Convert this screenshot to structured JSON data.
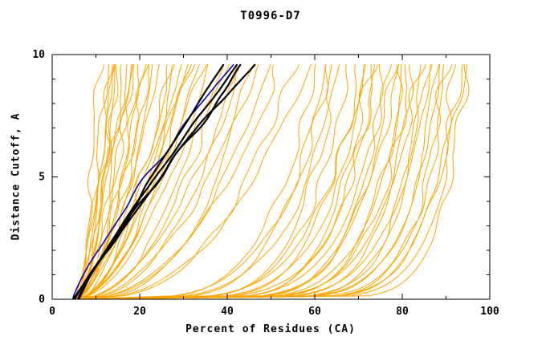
{
  "chart_data": {
    "type": "line",
    "title": "T0996-D7",
    "xlabel": "Percent of Residues (CA)",
    "ylabel": "Distance Cutoff, A",
    "xlim": [
      0,
      100
    ],
    "ylim": [
      0,
      10
    ],
    "xticks": [
      0,
      20,
      40,
      60,
      80,
      100
    ],
    "yticks": [
      0,
      5,
      10
    ],
    "x_minor_step": 10,
    "y_minor_step": 1,
    "curve_top": 9.6,
    "grid": false,
    "legend": "none",
    "series": [
      {
        "name": "model-curves",
        "color": "#FFA500",
        "width": 1,
        "noise": 1.6,
        "curves": [
          {
            "s": 5,
            "e": 11,
            "p": 0.55
          },
          {
            "s": 5.5,
            "e": 12,
            "p": 0.6
          },
          {
            "s": 6,
            "e": 13,
            "p": 0.5
          },
          {
            "s": 5,
            "e": 13,
            "p": 0.7
          },
          {
            "s": 6,
            "e": 14,
            "p": 0.6
          },
          {
            "s": 5,
            "e": 15,
            "p": 0.5
          },
          {
            "s": 6,
            "e": 15,
            "p": 0.75
          },
          {
            "s": 5,
            "e": 16,
            "p": 0.6
          },
          {
            "s": 6,
            "e": 17,
            "p": 0.55
          },
          {
            "s": 5,
            "e": 18,
            "p": 0.7
          },
          {
            "s": 6,
            "e": 18,
            "p": 0.5
          },
          {
            "s": 5,
            "e": 19,
            "p": 0.65
          },
          {
            "s": 6,
            "e": 20,
            "p": 0.6
          },
          {
            "s": 5,
            "e": 21,
            "p": 0.5
          },
          {
            "s": 6,
            "e": 22,
            "p": 0.7
          },
          {
            "s": 5,
            "e": 23,
            "p": 0.6
          },
          {
            "s": 6,
            "e": 24,
            "p": 0.55
          },
          {
            "s": 5,
            "e": 25,
            "p": 0.65
          },
          {
            "s": 6,
            "e": 26,
            "p": 0.5
          },
          {
            "s": 5,
            "e": 27,
            "p": 0.6
          },
          {
            "s": 6,
            "e": 28,
            "p": 0.55
          },
          {
            "s": 5,
            "e": 29,
            "p": 0.7
          },
          {
            "s": 6,
            "e": 30,
            "p": 0.6
          },
          {
            "s": 5,
            "e": 31,
            "p": 0.5
          },
          {
            "s": 6,
            "e": 32,
            "p": 0.65
          },
          {
            "s": 5,
            "e": 33,
            "p": 0.55
          },
          {
            "s": 6,
            "e": 34,
            "p": 0.6
          },
          {
            "s": 5,
            "e": 35,
            "p": 0.5
          },
          {
            "s": 5,
            "e": 38,
            "p": 0.45
          },
          {
            "s": 6,
            "e": 40,
            "p": 0.5
          },
          {
            "s": 5,
            "e": 42,
            "p": 0.4
          },
          {
            "s": 6,
            "e": 44,
            "p": 0.55
          },
          {
            "s": 5,
            "e": 46,
            "p": 0.35
          },
          {
            "s": 6,
            "e": 48,
            "p": 0.5
          },
          {
            "s": 5,
            "e": 50,
            "p": 0.4
          },
          {
            "s": 6,
            "e": 52,
            "p": 0.45
          },
          {
            "s": 5,
            "e": 55,
            "p": 0.35
          },
          {
            "s": 6,
            "e": 58,
            "p": 0.4
          },
          {
            "s": 5,
            "e": 60,
            "p": 0.2
          },
          {
            "s": 6,
            "e": 62,
            "p": 0.18
          },
          {
            "s": 5,
            "e": 64,
            "p": 0.22
          },
          {
            "s": 6,
            "e": 65,
            "p": 0.15
          },
          {
            "s": 5,
            "e": 66,
            "p": 0.2
          },
          {
            "s": 6,
            "e": 68,
            "p": 0.16
          },
          {
            "s": 5,
            "e": 70,
            "p": 0.14
          },
          {
            "s": 6,
            "e": 71,
            "p": 0.18
          },
          {
            "s": 5,
            "e": 72,
            "p": 0.12
          },
          {
            "s": 6,
            "e": 73,
            "p": 0.16
          },
          {
            "s": 5,
            "e": 74,
            "p": 0.13
          },
          {
            "s": 6,
            "e": 75,
            "p": 0.15
          },
          {
            "s": 5,
            "e": 76,
            "p": 0.11
          },
          {
            "s": 6,
            "e": 77,
            "p": 0.14
          },
          {
            "s": 5,
            "e": 78,
            "p": 0.12
          },
          {
            "s": 6,
            "e": 79,
            "p": 0.13
          },
          {
            "s": 5,
            "e": 80,
            "p": 0.1
          },
          {
            "s": 6,
            "e": 81,
            "p": 0.12
          },
          {
            "s": 5,
            "e": 82,
            "p": 0.11
          },
          {
            "s": 6,
            "e": 83,
            "p": 0.1
          },
          {
            "s": 5,
            "e": 84,
            "p": 0.12
          },
          {
            "s": 6,
            "e": 85,
            "p": 0.09
          },
          {
            "s": 5,
            "e": 86,
            "p": 0.11
          },
          {
            "s": 6,
            "e": 87,
            "p": 0.1
          },
          {
            "s": 5,
            "e": 88,
            "p": 0.09
          },
          {
            "s": 6,
            "e": 89,
            "p": 0.1
          },
          {
            "s": 5,
            "e": 90,
            "p": 0.08
          },
          {
            "s": 6,
            "e": 91,
            "p": 0.09
          },
          {
            "s": 5,
            "e": 92,
            "p": 0.08
          },
          {
            "s": 6,
            "e": 93,
            "p": 0.09
          },
          {
            "s": 5,
            "e": 94,
            "p": 0.08
          },
          {
            "s": 6,
            "e": 95,
            "p": 0.07
          }
        ]
      },
      {
        "name": "reference-curve",
        "color": "#0000CC",
        "width": 1.6,
        "noise": 1.2,
        "curves": [
          {
            "s": 5,
            "e": 41,
            "p": 1.2
          }
        ]
      },
      {
        "name": "highlighted-model-curves",
        "color": "#000000",
        "width": 2.2,
        "noise": 1.2,
        "curves": [
          {
            "s": 5,
            "e": 40,
            "p": 1.0
          },
          {
            "s": 6,
            "e": 43,
            "p": 1.1
          },
          {
            "s": 5,
            "e": 44,
            "p": 1.05
          },
          {
            "s": 6,
            "e": 46,
            "p": 1.15
          }
        ]
      }
    ]
  }
}
